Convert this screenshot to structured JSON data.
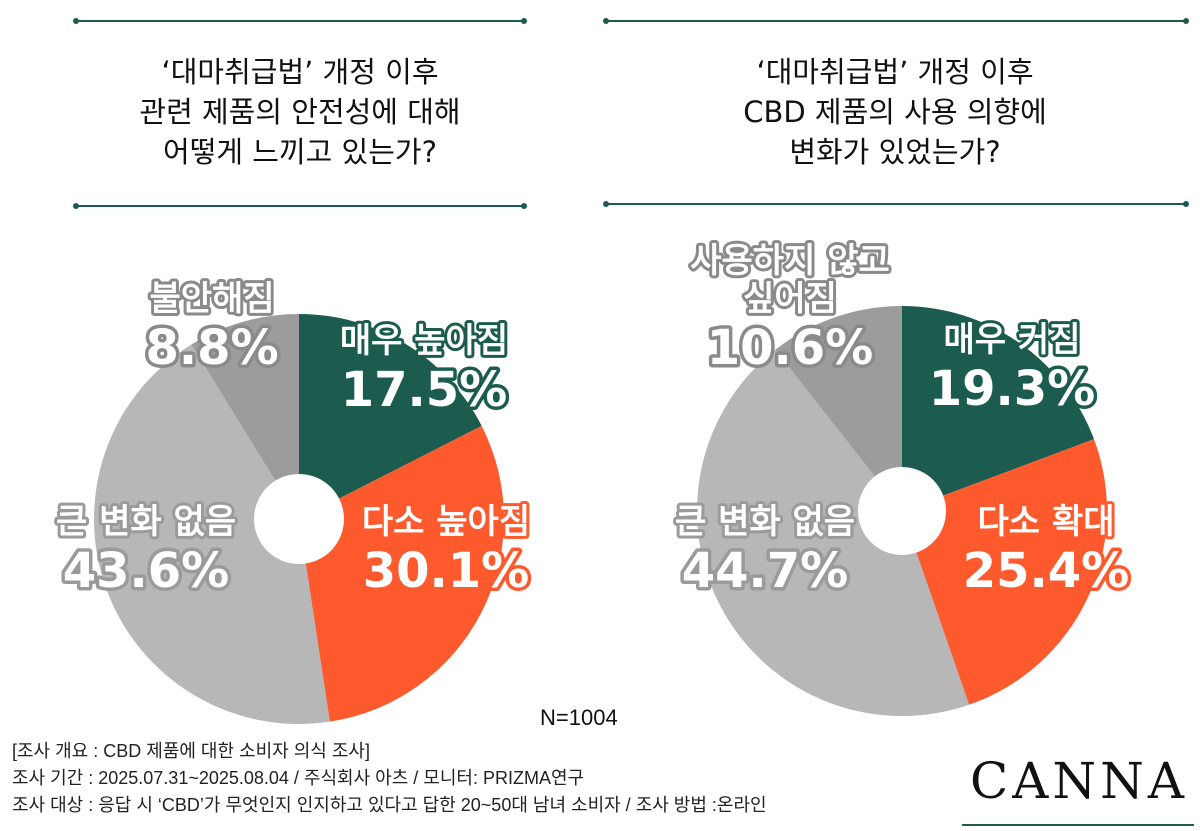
{
  "colors": {
    "very_high": "#1b5c4f",
    "somewhat_high": "#ff5a2e",
    "no_change": "#b7b7b7",
    "negative": "#9c9c9c",
    "rule": "#1b5c4f"
  },
  "chart_data": [
    {
      "type": "pie",
      "title_lines": [
        "‘대마취급법’ 개정 이후",
        "관련 제품의 안전성에 대해",
        "어떻게 느끼고 있는가?"
      ],
      "slices": [
        {
          "label": "매우 높아짐",
          "value": 17.5,
          "value_text": "17.5%",
          "color_key": "very_high"
        },
        {
          "label": "다소 높아짐",
          "value": 30.1,
          "value_text": "30.1%",
          "color_key": "somewhat_high"
        },
        {
          "label": "큰 변화 없음",
          "value": 43.6,
          "value_text": "43.6%",
          "color_key": "no_change"
        },
        {
          "label": "불안해짐",
          "value": 8.8,
          "value_text": "8.8%",
          "color_key": "negative"
        }
      ]
    },
    {
      "type": "pie",
      "title_lines": [
        "‘대마취급법’ 개정 이후",
        "CBD 제품의 사용 의향에",
        "변화가 있었는가?"
      ],
      "slices": [
        {
          "label": "매우 커짐",
          "value": 19.3,
          "value_text": "19.3%",
          "color_key": "very_high"
        },
        {
          "label": "다소 확대",
          "value": 25.4,
          "value_text": "25.4%",
          "color_key": "somewhat_high"
        },
        {
          "label": "큰 변화 없음",
          "value": 44.7,
          "value_text": "44.7%",
          "color_key": "no_change"
        },
        {
          "label": "사용하지 않고 싶어짐",
          "label_lines": [
            "사용하지 않고",
            "싶어짐"
          ],
          "value": 10.6,
          "value_text": "10.6%",
          "color_key": "negative"
        }
      ]
    }
  ],
  "sample": "N=1004",
  "footnote": {
    "overview": "[조사 개요 : CBD 제품에 대한 소비자 의식 조사]",
    "period": "조사 기간 : 2025.07.31~2025.08.04 / 주식회사 아츠 / 모니터: PRIZMA연구",
    "target": "조사 대상 : 응답 시 ‘CBD’가 무엇인지 인지하고 있다고 답한 20~50대 남녀 소비자  / 조사 방법 :온라인"
  },
  "brand": "CANNA"
}
